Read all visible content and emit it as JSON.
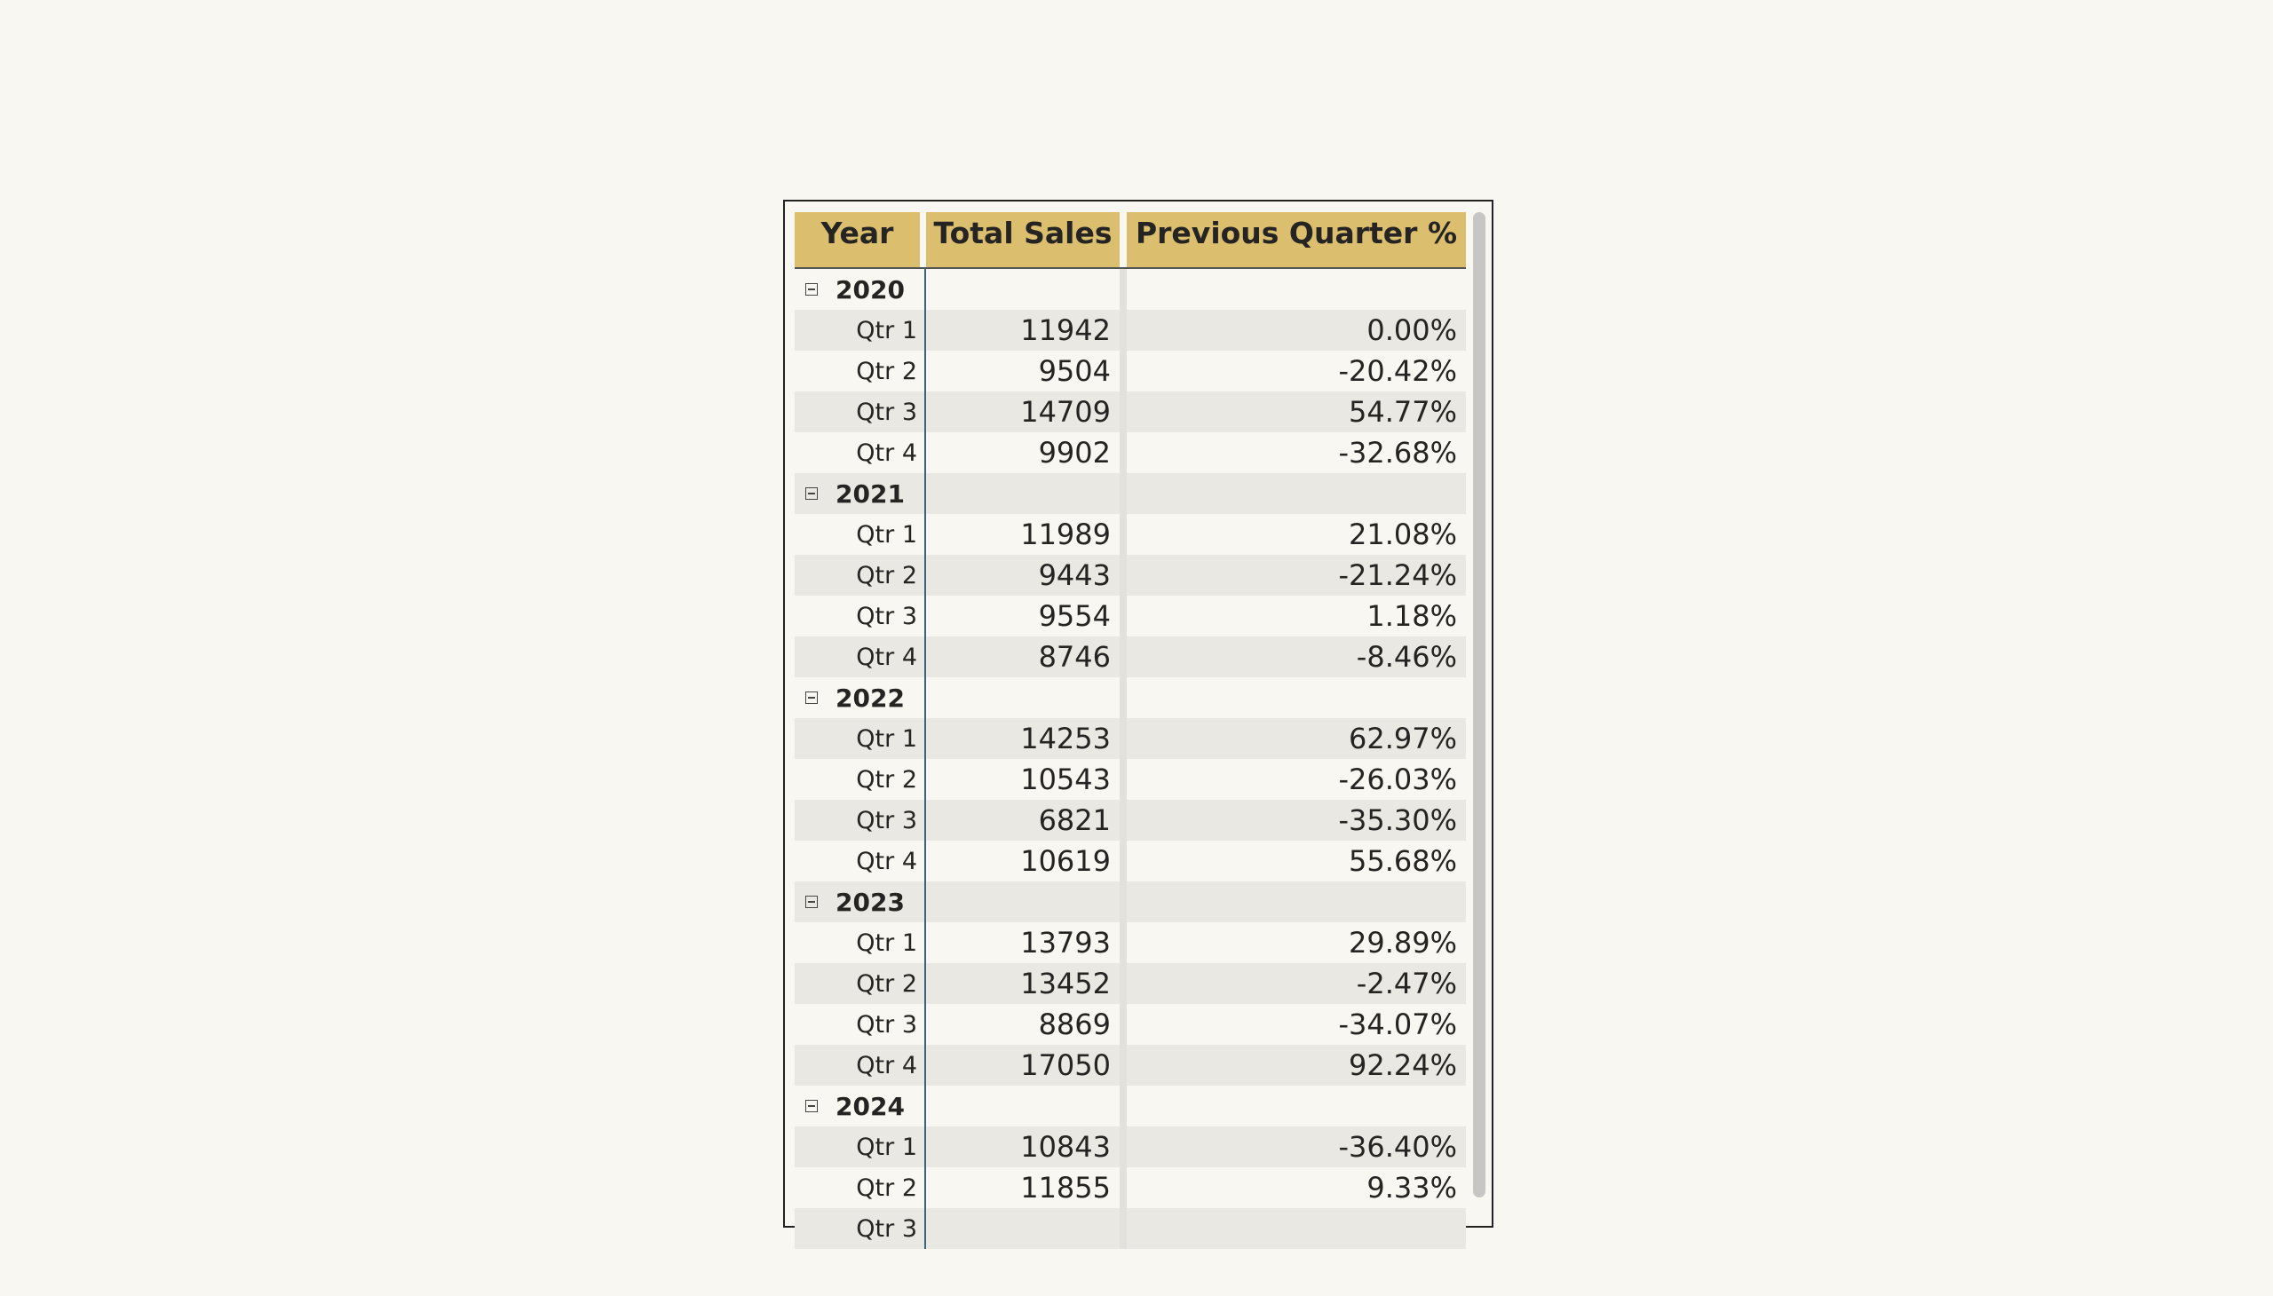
{
  "table": {
    "header": [
      "Year",
      "Total Sales",
      "Previous Quarter %"
    ],
    "groups": [
      {
        "year": "2020",
        "rows": [
          {
            "quarter": "Qtr 1",
            "sales": 11942,
            "change": "0.00%"
          },
          {
            "quarter": "Qtr 2",
            "sales": 9504,
            "change": "-20.42%"
          },
          {
            "quarter": "Qtr 3",
            "sales": 14709,
            "change": "54.77%"
          },
          {
            "quarter": "Qtr 4",
            "sales": 9902,
            "change": "-32.68%"
          }
        ]
      },
      {
        "year": "2021",
        "rows": [
          {
            "quarter": "Qtr 1",
            "sales": 11989,
            "change": "21.08%"
          },
          {
            "quarter": "Qtr 2",
            "sales": 9443,
            "change": "-21.24%"
          },
          {
            "quarter": "Qtr 3",
            "sales": 9554,
            "change": "1.18%"
          },
          {
            "quarter": "Qtr 4",
            "sales": 8746,
            "change": "-8.46%"
          }
        ]
      },
      {
        "year": "2022",
        "rows": [
          {
            "quarter": "Qtr 1",
            "sales": 14253,
            "change": "62.97%"
          },
          {
            "quarter": "Qtr 2",
            "sales": 10543,
            "change": "-26.03%"
          },
          {
            "quarter": "Qtr 3",
            "sales": 6821,
            "change": "-35.30%"
          },
          {
            "quarter": "Qtr 4",
            "sales": 10619,
            "change": "55.68%"
          }
        ]
      },
      {
        "year": "2023",
        "rows": [
          {
            "quarter": "Qtr 1",
            "sales": 13793,
            "change": "29.89%"
          },
          {
            "quarter": "Qtr 2",
            "sales": 13452,
            "change": "-2.47%"
          },
          {
            "quarter": "Qtr 3",
            "sales": 8869,
            "change": "-34.07%"
          },
          {
            "quarter": "Qtr 4",
            "sales": 17050,
            "change": "92.24%"
          }
        ]
      },
      {
        "year": "2024",
        "rows": [
          {
            "quarter": "Qtr 1",
            "sales": 10843,
            "change": "-36.40%"
          },
          {
            "quarter": "Qtr 2",
            "sales": 11855,
            "change": "9.33%"
          },
          {
            "quarter": "Qtr 3"
          }
        ]
      }
    ]
  }
}
